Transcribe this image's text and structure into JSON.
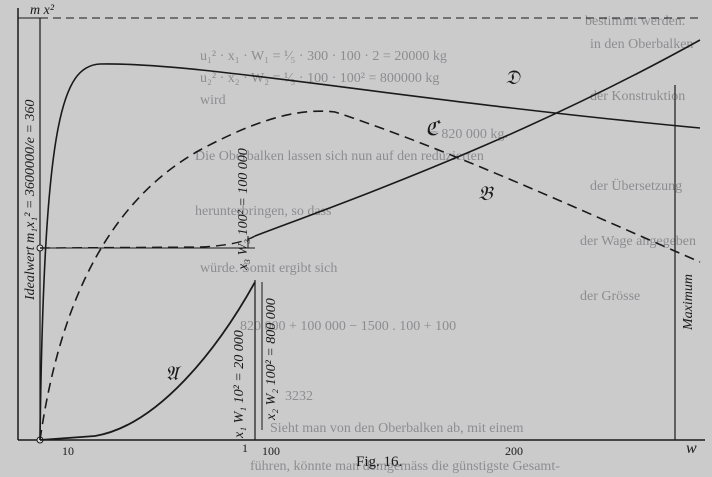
{
  "figure": {
    "caption": "Fig. 16.",
    "y_axis_label": "m x²",
    "ideal_value": "Idealwert m₁x₁² = 3600000/e = 360",
    "maximum": "Maximum",
    "curves": [
      "𝔄",
      "𝔅",
      "ℭ",
      "𝔇"
    ],
    "segments": [
      "x₁ W₁ 10² = 20 000",
      "x₂ W₂ 100² = 800 000",
      "x₃ W₃ 100² = 100 000"
    ],
    "x_ticks": [
      "10",
      "100",
      "200",
      "w",
      "1"
    ]
  },
  "bleed_text": [
    "u₁² · x₁ · W₁ = ¹⁄₅ · 300 · 100 · 2 = 20000 kg",
    "u₂² · x₂ · W₂ = ¹⁄₅ · 100 · 100² = 800000 kg",
    "wird",
    "= 820 000 kg.",
    "Die Oberbalken lassen sich nun auf den reduzierten",
    "herunterbringen, so dass",
    "würde. Somit ergibt sich",
    "820 000 + 100 000 − 1500 . 100 + 100",
    "3232",
    "Sieht man von den Oberbalken ab, mit einem",
    "führen, könnte man demgemäss die günstigste Gesamt-",
    "bestimmt werden.",
    "in den Oberbalken",
    "der Konstruktion",
    "der Übersetzung",
    "der Wage angegeben",
    "der Grösse"
  ]
}
